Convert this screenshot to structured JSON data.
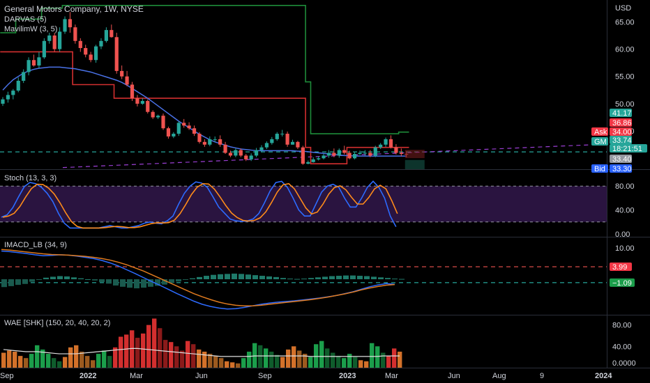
{
  "header": {
    "title": "General Motors Company, 1W, NYSE",
    "indicators": [
      "DARVAS (5)",
      "MavilimW (3, 5)"
    ],
    "currency": "USD"
  },
  "panes": {
    "stoch": {
      "label": "Stoch (13, 3, 3)"
    },
    "imacd": {
      "label": "IMACD_LB (34, 9)"
    },
    "wae": {
      "label": "WAE [SHK] (150, 20, 40, 20, 2)"
    }
  },
  "axes": {
    "price_ticks": [
      "65.00",
      "60.00",
      "55.00",
      "50.00",
      "45.00"
    ],
    "stoch_ticks": [
      "80.00",
      "40.00",
      "0.00"
    ],
    "imacd_ticks": [
      "10.00"
    ],
    "wae_ticks": [
      "80.00",
      "40.00",
      "0.0000"
    ],
    "time_labels": [
      "Sep",
      "2022",
      "Mar",
      "Jun",
      "Sep",
      "2023",
      "Mar",
      "Jun",
      "Aug",
      "9",
      "2024"
    ]
  },
  "price_badges": [
    {
      "text": "41.17",
      "bg": "#26a69a",
      "fg": "#ffffff"
    },
    {
      "text": "36.86",
      "bg": "#f23645",
      "fg": "#ffffff"
    },
    {
      "text": "Ask",
      "bg": "#f23645",
      "fg": "#ffffff"
    },
    {
      "text": "34.00",
      "bg": "#f23645",
      "fg": "#ffffff"
    },
    {
      "text": "GM",
      "bg": "#26a69a",
      "fg": "#ffffff"
    },
    {
      "text": "33.74",
      "bg": "#26a69a",
      "fg": "#ffffff"
    },
    {
      "text": "18:21:51",
      "bg": "#26a69a",
      "fg": "#ffffff"
    },
    {
      "text": "33.40",
      "bg": "#9598a1",
      "fg": "#ffffff"
    },
    {
      "text": "Bid",
      "bg": "#2962ff",
      "fg": "#ffffff"
    },
    {
      "text": "33.30",
      "bg": "#2962ff",
      "fg": "#ffffff"
    }
  ],
  "imacd_badges": [
    {
      "text": "3.99",
      "bg": "#f23645",
      "fg": "#ffffff"
    },
    {
      "text": "−1.09",
      "bg": "#1b9e4b",
      "fg": "#ffffff"
    }
  ],
  "colors": {
    "up": "#26a69a",
    "down": "#ef5350",
    "mavilim": "#4a72e8",
    "darvas_top": "#1e8c3a",
    "darvas_bottom": "#d32f2f",
    "stoch_k": "#2d6bff",
    "stoch_d": "#ff8c1a",
    "stoch_band": "#2a1440",
    "macd_line": "#2d6bff",
    "signal_line": "#e07b1f",
    "level_green": "#26a69a",
    "level_red": "#ef5350",
    "trend_purple": "#9c3fd6"
  },
  "chart_data": {
    "type": "line",
    "symbol": "GM",
    "timeframe": "1W",
    "price_range": [
      38,
      69
    ],
    "candles": {
      "open": [
        50.0,
        50.8,
        51.6,
        52.4,
        54.2,
        55.8,
        58.0,
        57.0,
        58.5,
        61.5,
        62.5,
        60.0,
        63.2,
        65.5,
        64.0,
        61.5,
        60.2,
        59.0,
        58.0,
        60.5,
        61.5,
        63.5,
        62.2,
        56.0,
        55.0,
        53.5,
        51.0,
        50.0,
        50.5,
        48.5,
        47.5,
        47.8,
        45.5,
        44.0,
        44.5,
        46.5,
        46.0,
        45.5,
        44.5,
        43.0,
        42.5,
        43.5,
        43.5,
        42.5,
        41.0,
        40.5,
        41.5,
        40.5,
        39.8,
        40.5,
        41.5,
        42.0,
        42.8,
        43.5,
        44.5,
        44.5,
        42.5,
        43.0,
        42.0,
        39.0,
        39.3,
        39.8,
        40.0,
        40.5,
        41.0,
        40.5,
        41.5,
        41.0,
        40.0,
        40.8,
        41.0,
        41.0,
        40.5,
        42.0,
        42.5,
        43.5,
        42.0,
        41.0,
        40.8
      ],
      "high": [
        51.2,
        52.2,
        52.7,
        54.8,
        56.3,
        58.5,
        59.0,
        59.5,
        62.0,
        63.0,
        63.0,
        64.0,
        66.0,
        66.8,
        64.5,
        62.0,
        60.8,
        59.5,
        60.8,
        62.0,
        64.0,
        64.5,
        63.0,
        57.0,
        56.0,
        54.0,
        51.6,
        51.0,
        50.8,
        48.8,
        48.0,
        48.2,
        45.8,
        44.8,
        46.8,
        47.2,
        46.6,
        46.0,
        44.8,
        43.5,
        44.0,
        44.0,
        44.2,
        43.0,
        41.4,
        41.8,
        41.8,
        40.8,
        40.9,
        41.9,
        42.4,
        43.1,
        43.9,
        44.8,
        45.2,
        44.9,
        43.4,
        43.2,
        42.3,
        39.6,
        40.2,
        40.4,
        40.8,
        41.5,
        41.8,
        41.8,
        42.3,
        41.4,
        41.2,
        41.4,
        41.5,
        41.5,
        42.3,
        42.8,
        43.8,
        44.2,
        42.6,
        41.8,
        41.3
      ],
      "low": [
        49.6,
        50.2,
        50.8,
        52.1,
        53.8,
        55.2,
        56.8,
        56.5,
        58.2,
        61.0,
        59.5,
        59.5,
        62.8,
        63.0,
        61.0,
        59.5,
        58.5,
        57.6,
        57.5,
        60.0,
        61.2,
        62.1,
        55.5,
        54.5,
        53.2,
        50.5,
        49.5,
        49.8,
        48.2,
        47.2,
        47.2,
        45.2,
        43.6,
        43.7,
        44.1,
        45.6,
        45.2,
        44.1,
        42.7,
        42.1,
        42.2,
        43.0,
        42.1,
        40.8,
        40.2,
        40.2,
        40.2,
        39.5,
        39.5,
        40.2,
        41.2,
        41.7,
        42.5,
        43.2,
        44.0,
        42.1,
        42.5,
        41.7,
        38.8,
        38.9,
        39.2,
        39.6,
        39.8,
        40.1,
        40.2,
        40.1,
        40.7,
        39.8,
        39.8,
        40.6,
        40.5,
        40.2,
        40.2,
        41.7,
        42.1,
        41.8,
        40.7,
        40.4,
        40.2
      ],
      "close": [
        50.8,
        51.6,
        52.4,
        54.2,
        55.8,
        58.0,
        57.0,
        58.5,
        61.5,
        62.5,
        60.0,
        63.2,
        65.5,
        64.0,
        61.5,
        60.2,
        59.0,
        58.0,
        60.5,
        61.5,
        63.5,
        62.2,
        56.0,
        55.0,
        53.5,
        51.0,
        50.0,
        50.5,
        48.5,
        47.5,
        47.8,
        45.5,
        44.0,
        44.5,
        46.5,
        46.0,
        45.5,
        44.5,
        43.0,
        42.5,
        43.5,
        43.5,
        42.5,
        41.0,
        40.5,
        41.5,
        40.5,
        39.8,
        40.5,
        41.5,
        42.0,
        42.8,
        43.5,
        44.5,
        44.5,
        42.5,
        43.0,
        42.0,
        39.0,
        39.3,
        39.8,
        40.0,
        40.5,
        41.0,
        40.5,
        41.5,
        41.0,
        40.0,
        40.8,
        41.0,
        41.0,
        40.5,
        42.0,
        42.5,
        43.5,
        42.0,
        41.0,
        40.8,
        40.7
      ]
    },
    "mavilim": [
      52.5,
      53.5,
      54.4,
      55.0,
      55.6,
      56.0,
      56.3,
      56.5,
      56.6,
      56.7,
      56.7,
      56.7,
      56.6,
      56.5,
      56.4,
      56.2,
      56.0,
      55.8,
      55.5,
      55.2,
      54.9,
      54.6,
      54.3,
      53.9,
      53.4,
      52.8,
      52.2,
      51.6,
      51.0,
      50.3,
      49.6,
      48.9,
      48.2,
      47.5,
      46.8,
      46.2,
      45.6,
      45.0,
      44.4,
      43.9,
      43.4,
      43.0,
      42.7,
      42.4,
      42.1,
      41.9,
      41.7,
      41.6,
      41.5,
      41.4,
      41.4,
      41.4,
      41.4,
      41.4,
      41.4,
      41.4,
      41.4,
      41.3,
      41.3,
      41.2,
      41.1,
      41.0,
      40.9,
      40.8,
      40.7,
      40.6,
      40.5,
      40.5,
      40.4,
      40.4,
      40.4,
      40.4,
      40.4,
      40.4,
      40.4,
      40.4,
      40.4,
      40.4,
      40.4
    ],
    "darvas_top": [
      63,
      63,
      63,
      65.5,
      65.5,
      65.5,
      65.5,
      65.5,
      67.5,
      67.5,
      67.5,
      67.5,
      68.0,
      68.0,
      68.0,
      68.0,
      68.0,
      68.0,
      68.0,
      68.0,
      68.0,
      68.0,
      68.0,
      68.0,
      68.0,
      68.0,
      68.0,
      68.0,
      68.0,
      68.0,
      68.0,
      68.0,
      68.0,
      68.0,
      68.0,
      68.0,
      68.0,
      68.0,
      68.0,
      68.0,
      68.0,
      68.0,
      68.0,
      68.0,
      68.0,
      68.0,
      68.0,
      68.0,
      68.0,
      68.0,
      68.0,
      68.0,
      68.0,
      68.0,
      68.0,
      68.0,
      68.0,
      68.0,
      68.0,
      54.0,
      44.5,
      44.5,
      44.5,
      44.5,
      44.5,
      44.5,
      44.5,
      44.5,
      44.5,
      44.5,
      44.5,
      44.5,
      44.5,
      44.5,
      44.5,
      44.5,
      44.5,
      44.8,
      44.8
    ],
    "darvas_bottom": [
      59.5,
      59.5,
      59.5,
      59.5,
      59.5,
      59.5,
      59.5,
      59.5,
      59.5,
      59.5,
      59.5,
      59.5,
      59.5,
      59.5,
      53.5,
      53.5,
      53.5,
      53.5,
      53.5,
      53.5,
      53.5,
      53.5,
      51.0,
      51.0,
      51.0,
      51.0,
      51.0,
      51.0,
      51.0,
      51.0,
      51.0,
      51.0,
      51.0,
      51.0,
      51.0,
      51.0,
      51.0,
      51.0,
      51.0,
      51.0,
      51.0,
      51.0,
      51.0,
      51.0,
      51.0,
      51.0,
      51.0,
      51.0,
      51.0,
      51.0,
      51.0,
      51.0,
      51.0,
      51.0,
      51.0,
      51.0,
      51.0,
      51.0,
      51.0,
      42.0,
      39.0,
      39.0,
      39.0,
      39.0,
      39.0,
      39.0,
      39.0,
      42.0,
      42.0,
      42.0,
      42.0,
      42.0,
      42.0,
      42.0,
      42.0,
      42.0,
      42.0,
      42.0,
      42.0
    ],
    "levels": {
      "green_dashed": 41.17,
      "purple_trend_start": 38.3,
      "purple_trend_end": 42.6
    },
    "stoch": {
      "range": [
        0,
        100
      ],
      "upper_band": 80,
      "lower_band": 20,
      "k": [
        28,
        32,
        44,
        62,
        79,
        86,
        84,
        78,
        68,
        54,
        34,
        18,
        10,
        10,
        10,
        10,
        10,
        10,
        12,
        14,
        12,
        10,
        10,
        12,
        14,
        18,
        20,
        18,
        17,
        22,
        30,
        50,
        68,
        80,
        87,
        85,
        78,
        62,
        45,
        35,
        25,
        22,
        21,
        22,
        25,
        34,
        52,
        72,
        86,
        88,
        78,
        60,
        40,
        30,
        30,
        50,
        70,
        80,
        83,
        78,
        60,
        45,
        45,
        60,
        78,
        88,
        78,
        60,
        30,
        12
      ]
    },
    "imacd": {
      "range": [
        -10,
        12
      ],
      "levels": [
        3.99,
        -1.09
      ],
      "hist": [
        -2.5,
        -2.2,
        -1.8,
        -1.5,
        -0.8,
        -0.2,
        0.5,
        0.8,
        1.0,
        0.9,
        0.6,
        0.3,
        0.0,
        -0.4,
        -0.9,
        -1.4,
        -2.0,
        -2.4,
        -2.7,
        -2.9,
        -2.7,
        -2.4,
        -2.1,
        -1.7,
        -1.2,
        -0.7,
        -0.2,
        0.3,
        0.7,
        1.1,
        1.4,
        1.6,
        1.7,
        1.8,
        1.7,
        1.5,
        1.3,
        1.1,
        0.9,
        0.7,
        0.4,
        0.2,
        0.1,
        0.2,
        0.4,
        0.6,
        0.8,
        1.0,
        1.1,
        1.2,
        1.2,
        1.1,
        1.0,
        0.8,
        0.6,
        0.4,
        0.2,
        0.1
      ],
      "macd": [
        9.0,
        8.8,
        8.5,
        8.2,
        7.8,
        7.5,
        7.6,
        7.8,
        7.7,
        7.4,
        7.0,
        6.6,
        6.0,
        5.2,
        4.2,
        3.0,
        1.8,
        0.5,
        -0.8,
        -2.0,
        -3.3,
        -4.6,
        -5.8,
        -7.0,
        -8.0,
        -8.7,
        -9.2,
        -9.5,
        -9.4,
        -9.0,
        -8.5,
        -8.0,
        -7.6,
        -7.3,
        -7.1,
        -6.9,
        -6.6,
        -6.3,
        -6.0,
        -5.6,
        -5.2,
        -4.6,
        -4.0,
        -3.2,
        -2.4,
        -1.8,
        -1.4,
        -1.6
      ],
      "signal": [
        9.5,
        9.3,
        9.0,
        8.7,
        8.4,
        8.1,
        7.9,
        7.8,
        7.7,
        7.5,
        7.3,
        7.0,
        6.6,
        6.1,
        5.4,
        4.6,
        3.6,
        2.6,
        1.4,
        0.2,
        -1.0,
        -2.2,
        -3.4,
        -4.6,
        -5.6,
        -6.5,
        -7.3,
        -7.9,
        -8.3,
        -8.5,
        -8.5,
        -8.3,
        -8.0,
        -7.7,
        -7.4,
        -7.1,
        -6.8,
        -6.5,
        -6.1,
        -5.7,
        -5.2,
        -4.7,
        -4.1,
        -3.4,
        -2.8,
        -2.3,
        -1.9,
        -1.7
      ]
    },
    "wae": {
      "range": [
        0,
        90
      ],
      "bars": [
        [
          28,
          "#d3712a"
        ],
        [
          32,
          "#d3712a"
        ],
        [
          30,
          "#d3712a"
        ],
        [
          22,
          "#d3712a"
        ],
        [
          18,
          "#9c5a1f"
        ],
        [
          26,
          "#1b9e4b"
        ],
        [
          42,
          "#1b9e4b"
        ],
        [
          34,
          "#1b9e4b"
        ],
        [
          26,
          "#1b9e4b"
        ],
        [
          18,
          "#0f5c2c"
        ],
        [
          12,
          "#0f5c2c"
        ],
        [
          20,
          "#d3712a"
        ],
        [
          38,
          "#d3712a"
        ],
        [
          42,
          "#d3712a"
        ],
        [
          30,
          "#9c5a1f"
        ],
        [
          22,
          "#9c5a1f"
        ],
        [
          14,
          "#9c5a1f"
        ],
        [
          26,
          "#1b9e4b"
        ],
        [
          32,
          "#1b9e4b"
        ],
        [
          22,
          "#0f5c2c"
        ],
        [
          38,
          "#d32f2f"
        ],
        [
          58,
          "#d32f2f"
        ],
        [
          62,
          "#d32f2f"
        ],
        [
          70,
          "#d32f2f"
        ],
        [
          56,
          "#8b1a1a"
        ],
        [
          64,
          "#d32f2f"
        ],
        [
          80,
          "#d32f2f"
        ],
        [
          92,
          "#d32f2f"
        ],
        [
          74,
          "#8b1a1a"
        ],
        [
          52,
          "#8b1a1a"
        ],
        [
          48,
          "#d32f2f"
        ],
        [
          40,
          "#8b1a1a"
        ],
        [
          32,
          "#8b1a1a"
        ],
        [
          50,
          "#d32f2f"
        ],
        [
          44,
          "#8b1a1a"
        ],
        [
          34,
          "#d3712a"
        ],
        [
          30,
          "#d3712a"
        ],
        [
          26,
          "#9c5a1f"
        ],
        [
          22,
          "#9c5a1f"
        ],
        [
          18,
          "#9c5a1f"
        ],
        [
          12,
          "#d3712a"
        ],
        [
          10,
          "#d3712a"
        ],
        [
          8,
          "#9c5a1f"
        ],
        [
          18,
          "#1b9e4b"
        ],
        [
          30,
          "#1b9e4b"
        ],
        [
          46,
          "#1b9e4b"
        ],
        [
          42,
          "#0f5c2c"
        ],
        [
          36,
          "#1b9e4b"
        ],
        [
          30,
          "#0f5c2c"
        ],
        [
          24,
          "#0f5c2c"
        ],
        [
          20,
          "#d3712a"
        ],
        [
          34,
          "#d3712a"
        ],
        [
          40,
          "#d3712a"
        ],
        [
          32,
          "#9c5a1f"
        ],
        [
          26,
          "#9c5a1f"
        ],
        [
          20,
          "#1b9e4b"
        ],
        [
          44,
          "#1b9e4b"
        ],
        [
          50,
          "#1b9e4b"
        ],
        [
          36,
          "#0f5c2c"
        ],
        [
          28,
          "#0f5c2c"
        ],
        [
          22,
          "#0f5c2c"
        ],
        [
          18,
          "#1b9e4b"
        ],
        [
          26,
          "#1b9e4b"
        ],
        [
          20,
          "#0f5c2c"
        ],
        [
          14,
          "#d3712a"
        ],
        [
          12,
          "#d3712a"
        ],
        [
          46,
          "#1b9e4b"
        ],
        [
          40,
          "#1b9e4b"
        ],
        [
          28,
          "#0f5c2c"
        ],
        [
          22,
          "#d32f2f"
        ],
        [
          36,
          "#d32f2f"
        ],
        [
          30,
          "#d3712a"
        ]
      ],
      "deadzone": [
        34,
        33,
        32,
        31,
        30,
        30,
        30,
        29,
        28,
        27,
        26,
        26,
        26,
        26,
        27,
        28,
        29,
        30,
        31,
        32,
        33,
        34,
        35,
        36,
        36,
        35,
        34,
        33,
        32,
        31,
        30,
        29,
        28,
        27,
        26,
        25,
        24,
        23,
        22,
        21,
        21,
        21,
        21,
        21,
        21,
        22,
        22,
        22,
        22,
        22,
        22,
        22,
        22,
        22,
        22,
        21,
        21,
        21,
        21,
        21,
        21,
        21,
        21,
        21,
        21,
        21,
        21,
        21,
        22,
        22,
        22,
        22
      ]
    }
  }
}
